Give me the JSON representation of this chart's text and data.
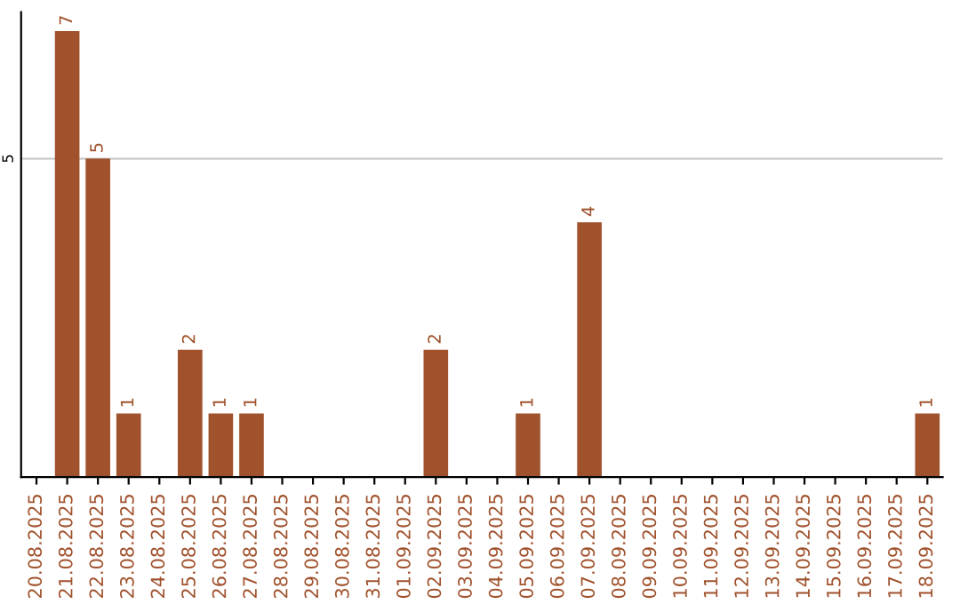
{
  "chart_data": {
    "type": "bar",
    "categories": [
      "20.08.2025",
      "21.08.2025",
      "22.08.2025",
      "23.08.2025",
      "24.08.2025",
      "25.08.2025",
      "26.08.2025",
      "27.08.2025",
      "28.08.2025",
      "29.08.2025",
      "30.08.2025",
      "31.08.2025",
      "01.09.2025",
      "02.09.2025",
      "03.09.2025",
      "04.09.2025",
      "05.09.2025",
      "06.09.2025",
      "07.09.2025",
      "08.09.2025",
      "09.09.2025",
      "10.09.2025",
      "11.09.2025",
      "12.09.2025",
      "13.09.2025",
      "14.09.2025",
      "15.09.2025",
      "16.09.2025",
      "17.09.2025",
      "18.09.2025"
    ],
    "values": [
      0,
      7,
      5,
      1,
      0,
      2,
      1,
      1,
      0,
      0,
      0,
      0,
      0,
      2,
      0,
      0,
      1,
      0,
      4,
      0,
      0,
      0,
      0,
      0,
      0,
      0,
      0,
      0,
      0,
      1
    ],
    "value_labels": [
      null,
      "7",
      "5",
      "1",
      null,
      "2",
      "1",
      "1",
      null,
      null,
      null,
      null,
      null,
      "2",
      null,
      null,
      "1",
      null,
      "4",
      null,
      null,
      null,
      null,
      null,
      null,
      null,
      null,
      null,
      null,
      "1"
    ],
    "color": "#a0522d",
    "ylim": [
      0,
      7.3
    ],
    "yticks": [
      5
    ],
    "grid": "y"
  }
}
